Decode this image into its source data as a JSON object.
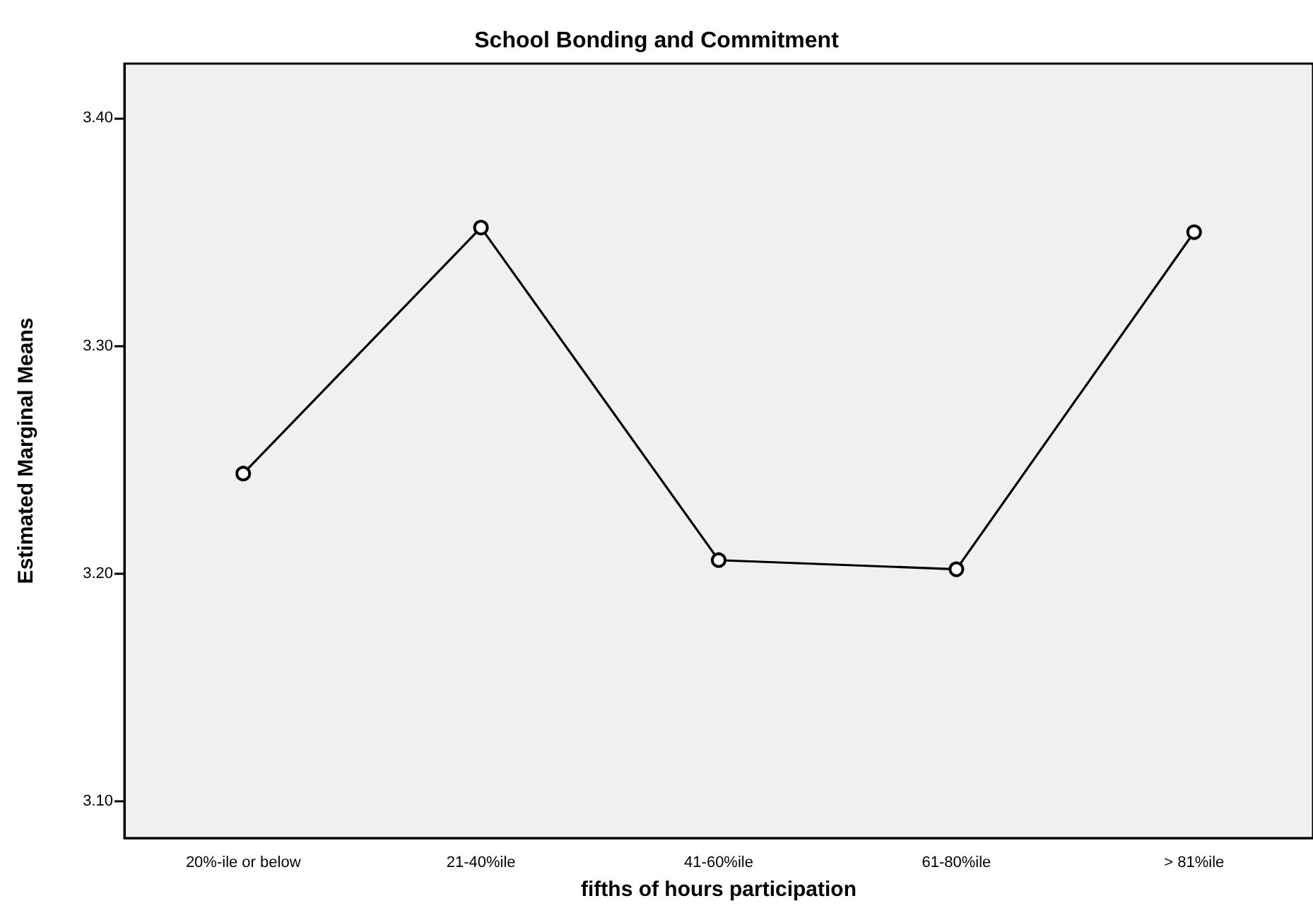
{
  "chart_data": {
    "type": "line",
    "title": "School Bonding and Commitment",
    "xlabel": "fifths of hours participation",
    "ylabel": "Estimated Marginal Means",
    "categories": [
      "20%-ile or below",
      "21-40%ile",
      "41-60%ile",
      "61-80%ile",
      "> 81%ile"
    ],
    "series": [
      {
        "color": "#000000",
        "values": [
          3.244,
          3.352,
          3.206,
          3.202,
          3.35
        ]
      }
    ],
    "ylim": [
      3.084,
      3.424
    ],
    "yticks": [
      {
        "value": 3.1,
        "label": "3.10"
      },
      {
        "value": 3.2,
        "label": "3.20"
      },
      {
        "value": 3.3,
        "label": "3.30"
      },
      {
        "value": 3.4,
        "label": "3.40"
      }
    ],
    "marker": "circle",
    "line_style": "solid"
  }
}
